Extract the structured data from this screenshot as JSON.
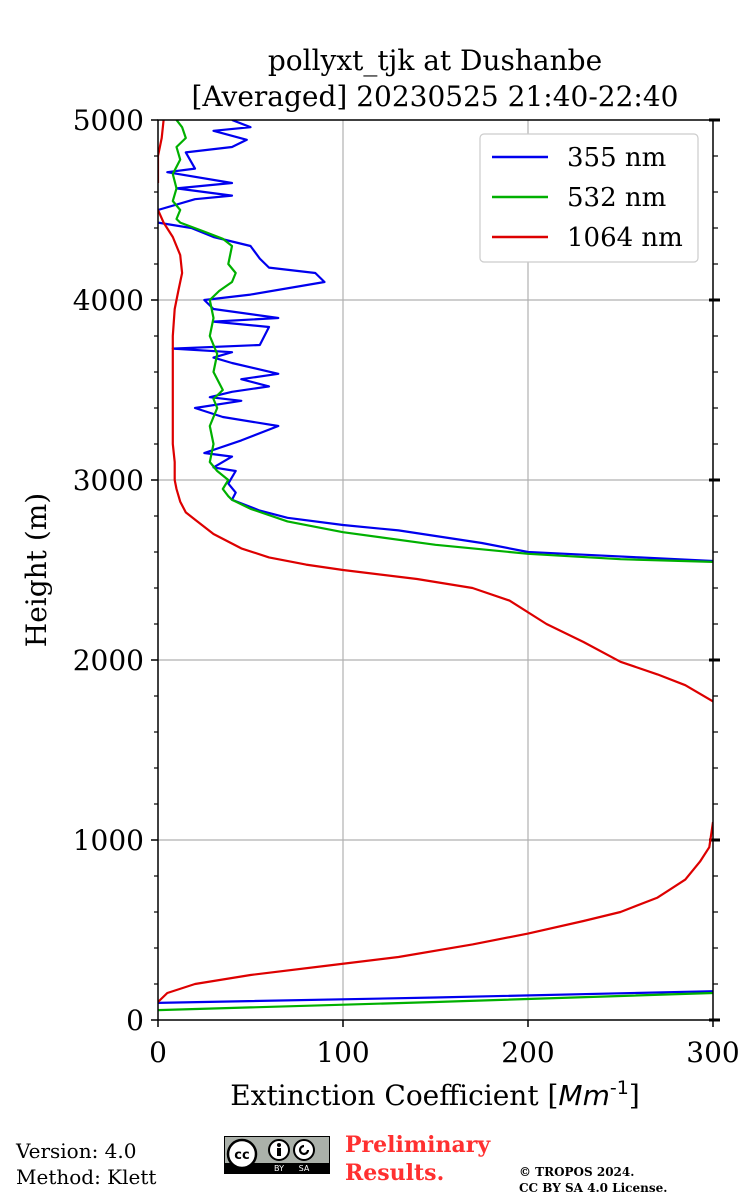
{
  "chart_data": {
    "type": "line",
    "title": "pollyxt_tjk at Dushanbe",
    "subtitle": "[Averaged] 20230525 21:40-22:40",
    "xlabel": "Extinction Coefficient [",
    "xlabel_unit_base": "Mm",
    "xlabel_unit_exp": "-1",
    "xlabel_close": "]",
    "ylabel": "Height (m)",
    "xlim": [
      0,
      300
    ],
    "ylim": [
      0,
      5000
    ],
    "xticks": [
      0,
      100,
      200,
      300
    ],
    "yticks": [
      0,
      1000,
      2000,
      3000,
      4000,
      5000
    ],
    "yminor_step": 200,
    "grid": true,
    "legend_position": "top-right",
    "series": [
      {
        "name": "355 nm",
        "color": "#0000ee",
        "points": [
          [
            300,
            160
          ],
          [
            150,
            125
          ],
          [
            0,
            95
          ],
          [
            null,
            null
          ],
          [
            300,
            2550
          ],
          [
            260,
            2570
          ],
          [
            230,
            2585
          ],
          [
            200,
            2600
          ],
          [
            175,
            2650
          ],
          [
            130,
            2720
          ],
          [
            100,
            2750
          ],
          [
            70,
            2790
          ],
          [
            55,
            2830
          ],
          [
            45,
            2870
          ],
          [
            40,
            2890
          ],
          [
            42,
            2930
          ],
          [
            38,
            2980
          ],
          [
            42,
            3050
          ],
          [
            30,
            3070
          ],
          [
            40,
            3130
          ],
          [
            25,
            3150
          ],
          [
            45,
            3220
          ],
          [
            65,
            3300
          ],
          [
            35,
            3350
          ],
          [
            20,
            3400
          ],
          [
            45,
            3440
          ],
          [
            28,
            3460
          ],
          [
            40,
            3490
          ],
          [
            60,
            3520
          ],
          [
            45,
            3560
          ],
          [
            65,
            3590
          ],
          [
            40,
            3650
          ],
          [
            30,
            3680
          ],
          [
            40,
            3710
          ],
          [
            8,
            3730
          ],
          [
            55,
            3750
          ],
          [
            60,
            3850
          ],
          [
            30,
            3880
          ],
          [
            65,
            3900
          ],
          [
            30,
            3950
          ],
          [
            25,
            4000
          ],
          [
            50,
            4030
          ],
          [
            90,
            4100
          ],
          [
            85,
            4150
          ],
          [
            60,
            4180
          ],
          [
            55,
            4230
          ],
          [
            50,
            4300
          ],
          [
            30,
            4350
          ],
          [
            18,
            4400
          ],
          [
            0,
            4430
          ],
          [
            null,
            null
          ],
          [
            0,
            4500
          ],
          [
            20,
            4560
          ],
          [
            40,
            4580
          ],
          [
            10,
            4620
          ],
          [
            40,
            4650
          ],
          [
            5,
            4710
          ],
          [
            20,
            4730
          ],
          [
            15,
            4820
          ],
          [
            40,
            4850
          ],
          [
            48,
            4890
          ],
          [
            30,
            4940
          ],
          [
            50,
            4960
          ],
          [
            40,
            5000
          ]
        ]
      },
      {
        "name": "532 nm",
        "color": "#00b000",
        "points": [
          [
            300,
            150
          ],
          [
            150,
            100
          ],
          [
            0,
            55
          ],
          [
            null,
            null
          ],
          [
            300,
            2545
          ],
          [
            250,
            2560
          ],
          [
            200,
            2590
          ],
          [
            150,
            2640
          ],
          [
            100,
            2710
          ],
          [
            70,
            2770
          ],
          [
            50,
            2840
          ],
          [
            40,
            2890
          ],
          [
            38,
            2910
          ],
          [
            35,
            2950
          ],
          [
            38,
            3000
          ],
          [
            32,
            3050
          ],
          [
            28,
            3100
          ],
          [
            30,
            3200
          ],
          [
            28,
            3300
          ],
          [
            32,
            3400
          ],
          [
            30,
            3450
          ],
          [
            35,
            3500
          ],
          [
            30,
            3600
          ],
          [
            32,
            3700
          ],
          [
            28,
            3800
          ],
          [
            30,
            3900
          ],
          [
            28,
            4000
          ],
          [
            33,
            4050
          ],
          [
            40,
            4100
          ],
          [
            42,
            4150
          ],
          [
            38,
            4200
          ],
          [
            40,
            4300
          ],
          [
            35,
            4340
          ],
          [
            25,
            4380
          ],
          [
            12,
            4430
          ],
          [
            10,
            4450
          ],
          [
            12,
            4500
          ],
          [
            8,
            4550
          ],
          [
            10,
            4620
          ],
          [
            8,
            4700
          ],
          [
            12,
            4780
          ],
          [
            10,
            4850
          ],
          [
            15,
            4900
          ],
          [
            13,
            4960
          ],
          [
            10,
            5000
          ]
        ]
      },
      {
        "name": "1064 nm",
        "color": "#dd0000",
        "points": [
          [
            0,
            100
          ],
          [
            5,
            150
          ],
          [
            20,
            200
          ],
          [
            50,
            250
          ],
          [
            90,
            300
          ],
          [
            130,
            350
          ],
          [
            170,
            420
          ],
          [
            200,
            480
          ],
          [
            230,
            550
          ],
          [
            250,
            600
          ],
          [
            270,
            680
          ],
          [
            285,
            780
          ],
          [
            293,
            880
          ],
          [
            298,
            960
          ],
          [
            300,
            1100
          ],
          [
            null,
            null
          ],
          [
            300,
            1770
          ],
          [
            285,
            1860
          ],
          [
            270,
            1920
          ],
          [
            250,
            1990
          ],
          [
            230,
            2100
          ],
          [
            210,
            2200
          ],
          [
            190,
            2330
          ],
          [
            170,
            2400
          ],
          [
            140,
            2450
          ],
          [
            100,
            2500
          ],
          [
            80,
            2530
          ],
          [
            60,
            2570
          ],
          [
            45,
            2620
          ],
          [
            30,
            2700
          ],
          [
            20,
            2780
          ],
          [
            15,
            2820
          ],
          [
            12,
            2880
          ],
          [
            10,
            2950
          ],
          [
            9,
            3000
          ],
          [
            9,
            3100
          ],
          [
            8,
            3200
          ],
          [
            8,
            3400
          ],
          [
            8,
            3600
          ],
          [
            8,
            3800
          ],
          [
            9,
            3950
          ],
          [
            11,
            4050
          ],
          [
            13,
            4150
          ],
          [
            12,
            4250
          ],
          [
            8,
            4350
          ],
          [
            3,
            4430
          ],
          [
            0,
            4500
          ],
          [
            null,
            null
          ],
          [
            0,
            4650
          ],
          [
            0,
            4800
          ],
          [
            2,
            4900
          ],
          [
            3,
            5000
          ]
        ]
      }
    ]
  },
  "footer": {
    "version": "Version: 4.0",
    "method": "Method: Klett",
    "preliminary_line1": "Preliminary",
    "preliminary_line2": "Results.",
    "copyright_line1": "© TROPOS 2024.",
    "copyright_line2": "CC BY SA 4.0 License.",
    "license_badge": {
      "cc": "cc",
      "by": "BY",
      "sa": "SA"
    }
  }
}
